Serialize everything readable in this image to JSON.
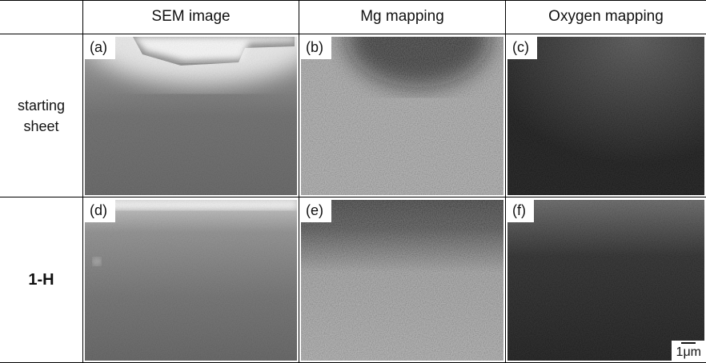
{
  "header": {
    "columns": [
      "SEM image",
      "Mg mapping",
      "Oxygen mapping"
    ]
  },
  "rows": [
    {
      "label": "starting sheet",
      "panels": [
        "(a)",
        "(b)",
        "(c)"
      ]
    },
    {
      "label": "1-H",
      "panels": [
        "(d)",
        "(e)",
        "(f)"
      ]
    }
  ],
  "scale_bar": "1μm"
}
